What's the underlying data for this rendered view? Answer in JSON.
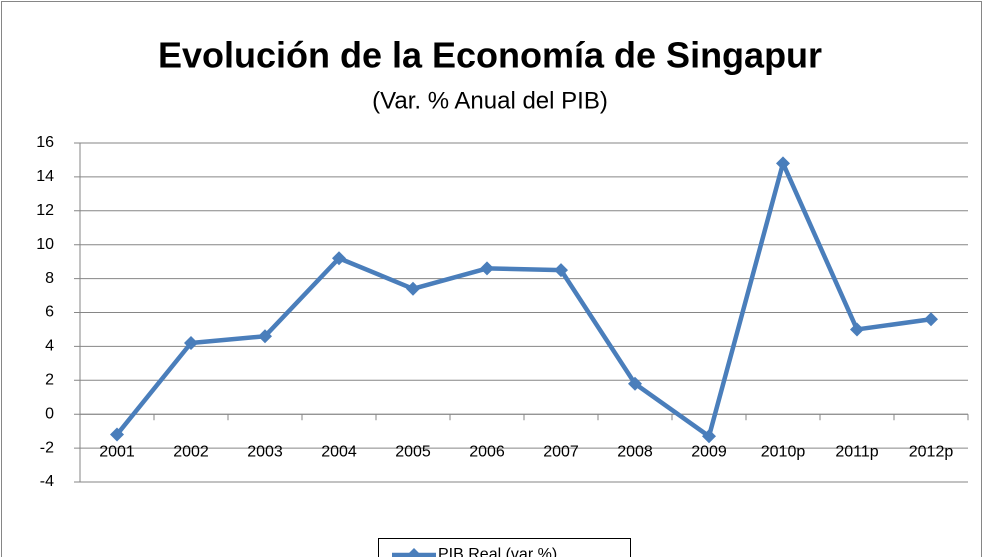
{
  "chart_data": {
    "type": "line",
    "title": "Evolución de la Economía de Singapur",
    "subtitle": "(Var. % Anual del PIB)",
    "categories": [
      "2001",
      "2002",
      "2003",
      "2004",
      "2005",
      "2006",
      "2007",
      "2008",
      "2009",
      "2010p",
      "2011p",
      "2012p"
    ],
    "series": [
      {
        "name": "PIB Real (var %)",
        "color": "#4a7ebb",
        "values": [
          -1.2,
          4.2,
          4.6,
          9.2,
          7.4,
          8.6,
          8.5,
          1.8,
          -1.3,
          14.8,
          5.0,
          5.6
        ]
      }
    ],
    "ylim": [
      -4,
      16
    ],
    "yticks": [
      -4,
      -2,
      0,
      2,
      4,
      6,
      8,
      10,
      12,
      14,
      16
    ],
    "grid": true,
    "legend": "bottom"
  }
}
